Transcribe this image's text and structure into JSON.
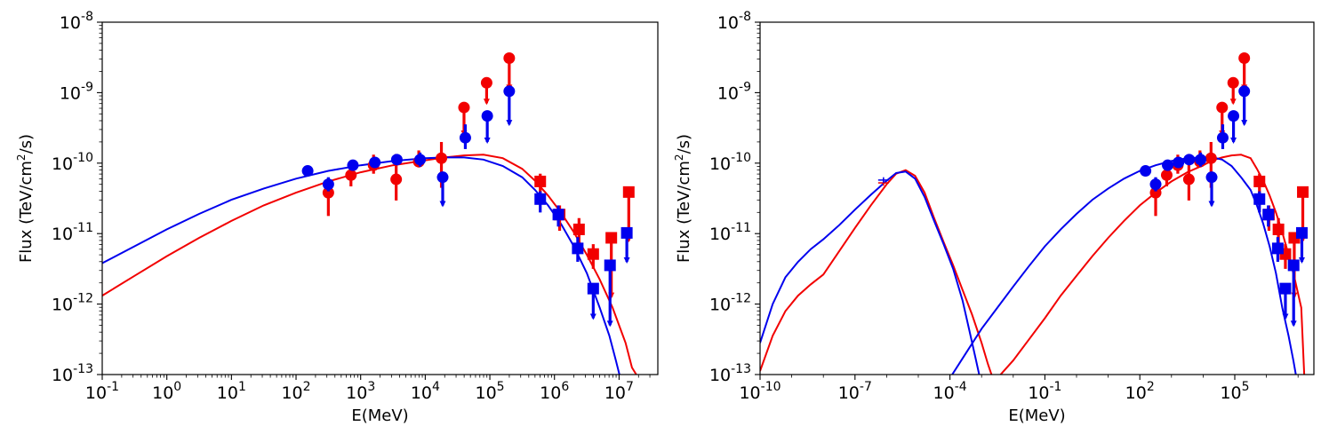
{
  "colors": {
    "red": "#f20000",
    "blue": "#0000ee"
  },
  "chart_data": [
    {
      "type": "scatter",
      "panel": "left",
      "xlabel": "E(MeV)",
      "ylabel": "Flux (TeV/cm²/s)",
      "xscale": "log",
      "yscale": "log",
      "xlim_log10": [
        -1,
        7.6
      ],
      "ylim_log10": [
        -13,
        -8
      ],
      "x_tick_exponents": [
        -1,
        0,
        1,
        2,
        3,
        4,
        5,
        6,
        7
      ],
      "x_tick_labels": [
        "10^-1",
        "10^0",
        "10^1",
        "10^2",
        "10^3",
        "10^4",
        "10^5",
        "10^6",
        "10^7"
      ],
      "y_tick_exponents": [
        -13,
        -12,
        -11,
        -10,
        -9,
        -8
      ],
      "y_tick_labels": [
        "10^-13",
        "10^-12",
        "10^-11",
        "10^-10",
        "10^-9",
        "10^-8"
      ],
      "series": [
        {
          "name": "red circles",
          "color": "red",
          "marker": "circle",
          "points": [
            [
              2.5,
              -10.42,
              -10.75,
              -10.25,
              false
            ],
            [
              2.85,
              -10.17,
              -10.33,
              -10.05,
              false
            ],
            [
              3.2,
              -10.03,
              -10.15,
              -9.88,
              false
            ],
            [
              3.55,
              -10.23,
              -10.53,
              -9.87,
              false
            ],
            [
              3.9,
              -9.98,
              -10.06,
              -9.82,
              false
            ],
            [
              4.25,
              -9.93,
              -10.35,
              -9.7,
              false
            ],
            [
              4.6,
              -9.21,
              -9.6,
              null,
              true
            ],
            [
              4.95,
              -8.86,
              -9.15,
              null,
              true
            ],
            [
              5.3,
              -8.51,
              -8.95,
              null,
              true
            ]
          ]
        },
        {
          "name": "blue circles",
          "color": "blue",
          "marker": "circle",
          "points": [
            [
              2.18,
              -10.11,
              null,
              null,
              false
            ],
            [
              2.5,
              -10.3,
              -10.4,
              -10.2,
              false
            ],
            [
              2.88,
              -10.03,
              null,
              null,
              false
            ],
            [
              3.22,
              -9.99,
              null,
              null,
              false
            ],
            [
              3.56,
              -9.95,
              null,
              null,
              false
            ],
            [
              3.92,
              -9.95,
              -10.05,
              -9.85,
              false
            ],
            [
              4.27,
              -10.2,
              -10.6,
              null,
              true
            ],
            [
              4.62,
              -9.64,
              -9.8,
              -9.45,
              false
            ],
            [
              4.96,
              -9.33,
              -9.7,
              null,
              true
            ],
            [
              5.3,
              -8.98,
              -9.45,
              null,
              true
            ]
          ]
        },
        {
          "name": "red squares",
          "color": "red",
          "marker": "square",
          "points": [
            [
              5.78,
              -10.26,
              -10.45,
              -10.15,
              false
            ],
            [
              6.08,
              -10.73,
              -10.96,
              -10.6,
              false
            ],
            [
              6.38,
              -10.94,
              -11.2,
              -10.78,
              false
            ],
            [
              6.6,
              -11.29,
              -11.5,
              -11.15,
              false
            ],
            [
              6.88,
              -11.06,
              -11.9,
              null,
              true
            ],
            [
              7.15,
              -10.41,
              -11.1,
              null,
              true
            ]
          ]
        },
        {
          "name": "blue squares",
          "color": "blue",
          "marker": "square",
          "points": [
            [
              5.78,
              -10.51,
              -10.7,
              -10.4,
              false
            ],
            [
              6.06,
              -10.73,
              -10.9,
              -10.6,
              false
            ],
            [
              6.36,
              -11.21,
              -11.4,
              -11.05,
              false
            ],
            [
              6.6,
              -11.78,
              -12.2,
              null,
              true
            ],
            [
              6.86,
              -11.45,
              -12.3,
              null,
              true
            ],
            [
              7.12,
              -10.99,
              -11.4,
              null,
              true
            ]
          ]
        }
      ],
      "models": [
        {
          "name": "red model",
          "color": "red",
          "x": [
            -1,
            -0.5,
            0,
            0.5,
            1,
            1.5,
            2,
            2.5,
            3,
            3.5,
            4,
            4.3,
            4.6,
            4.9,
            5.2,
            5.5,
            5.7,
            5.9,
            6.1,
            6.3,
            6.5,
            6.7,
            6.9,
            7.1,
            7.2,
            7.3
          ],
          "y": [
            -11.88,
            -11.6,
            -11.32,
            -11.06,
            -10.82,
            -10.6,
            -10.42,
            -10.26,
            -10.13,
            -10.03,
            -9.96,
            -9.92,
            -9.89,
            -9.88,
            -9.93,
            -10.08,
            -10.25,
            -10.46,
            -10.7,
            -10.98,
            -11.3,
            -11.65,
            -12.05,
            -12.55,
            -12.9,
            -13.05
          ]
        },
        {
          "name": "blue model",
          "color": "blue",
          "x": [
            -1,
            -0.5,
            0,
            0.5,
            1,
            1.5,
            2,
            2.5,
            3,
            3.5,
            4,
            4.3,
            4.6,
            4.9,
            5.2,
            5.5,
            5.7,
            5.9,
            6.1,
            6.3,
            6.5,
            6.7,
            6.85,
            6.95,
            7.02
          ],
          "y": [
            -11.42,
            -11.18,
            -10.94,
            -10.72,
            -10.52,
            -10.36,
            -10.22,
            -10.11,
            -10.03,
            -9.97,
            -9.93,
            -9.92,
            -9.92,
            -9.95,
            -10.04,
            -10.2,
            -10.38,
            -10.6,
            -10.86,
            -11.18,
            -11.56,
            -12.05,
            -12.45,
            -12.8,
            -13.05
          ]
        }
      ]
    },
    {
      "type": "scatter",
      "panel": "right",
      "xlabel": "E(MeV)",
      "ylabel": "Flux (TeV/cm²/s)",
      "xscale": "log",
      "yscale": "log",
      "xlim_log10": [
        -10,
        7.5
      ],
      "ylim_log10": [
        -13,
        -8
      ],
      "x_tick_exponents": [
        -10,
        -7,
        -4,
        -1,
        2,
        5
      ],
      "x_tick_labels": [
        "10^-10",
        "10^-7",
        "10^-4",
        "10^-1",
        "10^2",
        "10^5"
      ],
      "y_tick_exponents": [
        -13,
        -12,
        -11,
        -10,
        -9,
        -8
      ],
      "y_tick_labels": [
        "10^-13",
        "10^-12",
        "10^-11",
        "10^-10",
        "10^-9",
        "10^-8"
      ],
      "series": [
        {
          "name": "red circles",
          "color": "red",
          "marker": "circle",
          "points": [
            [
              2.5,
              -10.42,
              -10.75,
              -10.25,
              false
            ],
            [
              2.85,
              -10.17,
              -10.33,
              -10.05,
              false
            ],
            [
              3.2,
              -10.03,
              -10.15,
              -9.88,
              false
            ],
            [
              3.55,
              -10.23,
              -10.53,
              -9.87,
              false
            ],
            [
              3.9,
              -9.98,
              -10.06,
              -9.82,
              false
            ],
            [
              4.25,
              -9.93,
              -10.35,
              -9.7,
              false
            ],
            [
              4.6,
              -9.21,
              -9.6,
              null,
              true
            ],
            [
              4.95,
              -8.86,
              -9.15,
              null,
              true
            ],
            [
              5.3,
              -8.51,
              -8.95,
              null,
              true
            ]
          ]
        },
        {
          "name": "blue circles",
          "color": "blue",
          "marker": "circle",
          "points": [
            [
              2.18,
              -10.11,
              null,
              null,
              false
            ],
            [
              2.5,
              -10.3,
              -10.4,
              -10.2,
              false
            ],
            [
              2.88,
              -10.03,
              null,
              null,
              false
            ],
            [
              3.22,
              -9.99,
              null,
              null,
              false
            ],
            [
              3.56,
              -9.95,
              null,
              null,
              false
            ],
            [
              3.92,
              -9.95,
              -10.05,
              -9.85,
              false
            ],
            [
              4.27,
              -10.2,
              -10.6,
              null,
              true
            ],
            [
              4.62,
              -9.64,
              -9.8,
              -9.45,
              false
            ],
            [
              4.96,
              -9.33,
              -9.7,
              null,
              true
            ],
            [
              5.3,
              -8.98,
              -9.45,
              null,
              true
            ]
          ]
        },
        {
          "name": "red squares",
          "color": "red",
          "marker": "square",
          "points": [
            [
              5.78,
              -10.26,
              -10.45,
              -10.15,
              false
            ],
            [
              6.08,
              -10.73,
              -10.96,
              -10.6,
              false
            ],
            [
              6.38,
              -10.94,
              -11.2,
              -10.78,
              false
            ],
            [
              6.6,
              -11.29,
              -11.5,
              -11.15,
              false
            ],
            [
              6.88,
              -11.06,
              -11.9,
              null,
              true
            ],
            [
              7.15,
              -10.41,
              -11.1,
              null,
              true
            ]
          ]
        },
        {
          "name": "blue squares",
          "color": "blue",
          "marker": "square",
          "points": [
            [
              5.78,
              -10.51,
              -10.7,
              -10.4,
              false
            ],
            [
              6.06,
              -10.73,
              -10.9,
              -10.6,
              false
            ],
            [
              6.36,
              -11.21,
              -11.4,
              -11.05,
              false
            ],
            [
              6.6,
              -11.78,
              -12.2,
              null,
              true
            ],
            [
              6.86,
              -11.45,
              -12.3,
              null,
              true
            ],
            [
              7.12,
              -10.99,
              -11.4,
              null,
              true
            ]
          ]
        },
        {
          "name": "optical cross (red)",
          "color": "red",
          "marker": "cross",
          "points": [
            [
              -6.1,
              -10.28,
              -10.32,
              -10.22,
              false
            ]
          ]
        },
        {
          "name": "optical cross (blue)",
          "color": "blue",
          "marker": "cross",
          "points": [
            [
              -6.1,
              -10.24,
              -10.28,
              -10.2,
              false
            ]
          ]
        }
      ],
      "models": [
        {
          "name": "red synchrotron",
          "color": "red",
          "x": [
            -10,
            -9.6,
            -9.2,
            -8.8,
            -8.4,
            -8,
            -7.5,
            -7,
            -6.5,
            -6,
            -5.7,
            -5.4,
            -5.1,
            -4.8,
            -4.5,
            -4.2,
            -3.9,
            -3.6,
            -3.3,
            -3,
            -2.8,
            -2.65
          ],
          "y": [
            -12.95,
            -12.45,
            -12.1,
            -11.88,
            -11.72,
            -11.58,
            -11.25,
            -10.92,
            -10.6,
            -10.3,
            -10.15,
            -10.1,
            -10.18,
            -10.42,
            -10.78,
            -11.12,
            -11.45,
            -11.8,
            -12.15,
            -12.55,
            -12.85,
            -13.05
          ]
        },
        {
          "name": "blue synchrotron",
          "color": "blue",
          "x": [
            -10,
            -9.6,
            -9.2,
            -8.8,
            -8.4,
            -8,
            -7.5,
            -7,
            -6.5,
            -6,
            -5.7,
            -5.4,
            -5.1,
            -4.8,
            -4.5,
            -4.2,
            -3.9,
            -3.6,
            -3.4,
            -3.2,
            -3.1,
            -3.05
          ],
          "y": [
            -12.55,
            -12.0,
            -11.62,
            -11.4,
            -11.22,
            -11.08,
            -10.88,
            -10.66,
            -10.45,
            -10.25,
            -10.14,
            -10.12,
            -10.22,
            -10.48,
            -10.82,
            -11.15,
            -11.5,
            -11.95,
            -12.35,
            -12.75,
            -12.95,
            -13.05
          ]
        },
        {
          "name": "red inverse compton",
          "color": "red",
          "x": [
            -2.5,
            -2,
            -1.5,
            -1,
            -0.5,
            0,
            0.5,
            1,
            1.5,
            2,
            2.5,
            3,
            3.5,
            4,
            4.3,
            4.6,
            4.9,
            5.2,
            5.5,
            5.7,
            5.9,
            6.1,
            6.3,
            6.5,
            6.7,
            6.9,
            7.1,
            7.2
          ],
          "y": [
            -13.05,
            -12.8,
            -12.5,
            -12.2,
            -11.88,
            -11.6,
            -11.32,
            -11.06,
            -10.82,
            -10.6,
            -10.42,
            -10.26,
            -10.13,
            -10.03,
            -9.96,
            -9.92,
            -9.89,
            -9.88,
            -9.93,
            -10.08,
            -10.25,
            -10.46,
            -10.7,
            -10.98,
            -11.3,
            -11.65,
            -12.05,
            -13.05
          ]
        },
        {
          "name": "blue inverse compton",
          "color": "blue",
          "x": [
            -4,
            -3.5,
            -3,
            -2.5,
            -2,
            -1.5,
            -1,
            -0.5,
            0,
            0.5,
            1,
            1.5,
            2,
            2.5,
            3,
            3.5,
            4,
            4.3,
            4.6,
            4.9,
            5.2,
            5.5,
            5.7,
            5.9,
            6.1,
            6.3,
            6.5,
            6.7,
            6.85,
            6.95
          ],
          "y": [
            -13.05,
            -12.7,
            -12.35,
            -12.05,
            -11.75,
            -11.46,
            -11.18,
            -10.94,
            -10.72,
            -10.52,
            -10.36,
            -10.22,
            -10.11,
            -10.03,
            -9.97,
            -9.93,
            -9.92,
            -9.92,
            -9.95,
            -10.04,
            -10.2,
            -10.38,
            -10.6,
            -10.86,
            -11.18,
            -11.56,
            -12.05,
            -12.45,
            -12.8,
            -13.05
          ]
        }
      ]
    }
  ]
}
